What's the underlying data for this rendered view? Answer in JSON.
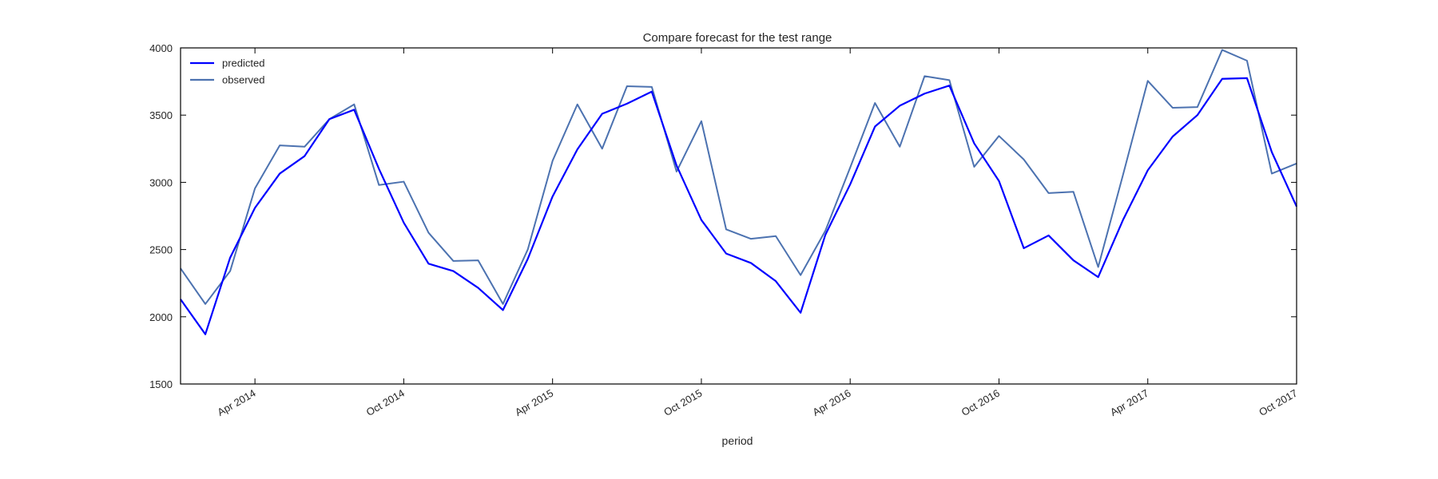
{
  "chart_data": {
    "type": "line",
    "title": "Compare forecast for the test range",
    "xlabel": "period",
    "ylabel": "",
    "ylim": [
      1500,
      4000
    ],
    "yticks": [
      1500,
      2000,
      2500,
      3000,
      3500,
      4000
    ],
    "xlim": [
      "2014-01",
      "2017-10"
    ],
    "xticks": [
      {
        "label": "Apr 2014",
        "date": "2014-04"
      },
      {
        "label": "Oct 2014",
        "date": "2014-10"
      },
      {
        "label": "Apr 2015",
        "date": "2015-04"
      },
      {
        "label": "Oct 2015",
        "date": "2015-10"
      },
      {
        "label": "Apr 2016",
        "date": "2016-04"
      },
      {
        "label": "Oct 2016",
        "date": "2016-10"
      },
      {
        "label": "Apr 2017",
        "date": "2017-04"
      },
      {
        "label": "Oct 2017",
        "date": "2017-10"
      }
    ],
    "x": [
      "2014-01",
      "2014-02",
      "2014-03",
      "2014-04",
      "2014-05",
      "2014-06",
      "2014-07",
      "2014-08",
      "2014-09",
      "2014-10",
      "2014-11",
      "2014-12",
      "2015-01",
      "2015-02",
      "2015-03",
      "2015-04",
      "2015-05",
      "2015-06",
      "2015-07",
      "2015-08",
      "2015-09",
      "2015-10",
      "2015-11",
      "2015-12",
      "2016-01",
      "2016-02",
      "2016-03",
      "2016-04",
      "2016-05",
      "2016-06",
      "2016-07",
      "2016-08",
      "2016-09",
      "2016-10",
      "2016-11",
      "2016-12",
      "2017-01",
      "2017-02",
      "2017-03",
      "2017-04",
      "2017-05",
      "2017-06",
      "2017-07",
      "2017-08",
      "2017-09",
      "2017-10"
    ],
    "series": [
      {
        "name": "predicted",
        "color": "#0000ff",
        "values": [
          2130,
          1870,
          2440,
          2810,
          3065,
          3195,
          3470,
          3540,
          3100,
          2700,
          2395,
          2340,
          2215,
          2050,
          2430,
          2895,
          3245,
          3510,
          3585,
          3675,
          3125,
          2720,
          2470,
          2400,
          2265,
          2030,
          2610,
          2985,
          3415,
          3570,
          3660,
          3720,
          3290,
          3010,
          2510,
          2605,
          2420,
          2295,
          2720,
          3090,
          3340,
          3500,
          3770,
          3775,
          3225,
          2820
        ]
      },
      {
        "name": "observed",
        "color": "#4c72b0",
        "values": [
          2360,
          2095,
          2340,
          2955,
          3275,
          3265,
          3470,
          3580,
          2980,
          3005,
          2625,
          2415,
          2420,
          2095,
          2500,
          3160,
          3580,
          3250,
          3715,
          3710,
          3080,
          3455,
          2650,
          2580,
          2600,
          2310,
          2640,
          3110,
          3590,
          3265,
          3790,
          3760,
          3115,
          3345,
          3170,
          2920,
          2930,
          2370,
          3055,
          3755,
          3555,
          3560,
          3985,
          3905,
          3065,
          3140
        ]
      }
    ],
    "legend": {
      "location": "upper-left",
      "entries": [
        "predicted",
        "observed"
      ]
    },
    "grid": false
  }
}
